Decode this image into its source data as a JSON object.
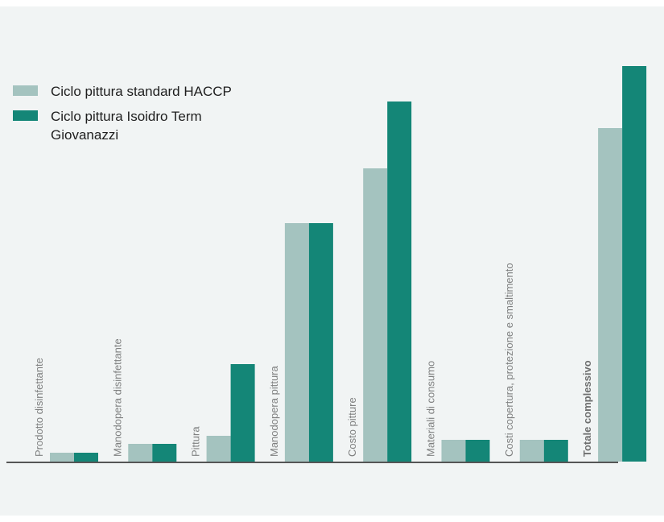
{
  "chart_data": {
    "type": "bar",
    "categories": [
      "Prodotto disinfettante",
      "Manodopera disinfettante",
      "Pittura",
      "Manodopera pittura",
      "Costo pitture",
      "Materiali di consumo",
      "Costi copertura, protezione e smaltimento",
      "Totale complessivo"
    ],
    "bold_category": "Totale complessivo",
    "series": [
      {
        "name": "Ciclo pittura standard HACCP",
        "color": "#a4c3bf",
        "values": [
          11,
          22,
          32,
          296,
          364,
          27,
          27,
          414
        ]
      },
      {
        "name": "Ciclo pittura Isoidro Term Giovanazzi",
        "color": "#148677",
        "values": [
          11,
          22,
          121,
          296,
          447,
          27,
          27,
          491
        ]
      }
    ],
    "ylim": [
      0,
      510
    ],
    "grid": false,
    "legend_position": "top-left",
    "baseline_color": "#555555"
  }
}
